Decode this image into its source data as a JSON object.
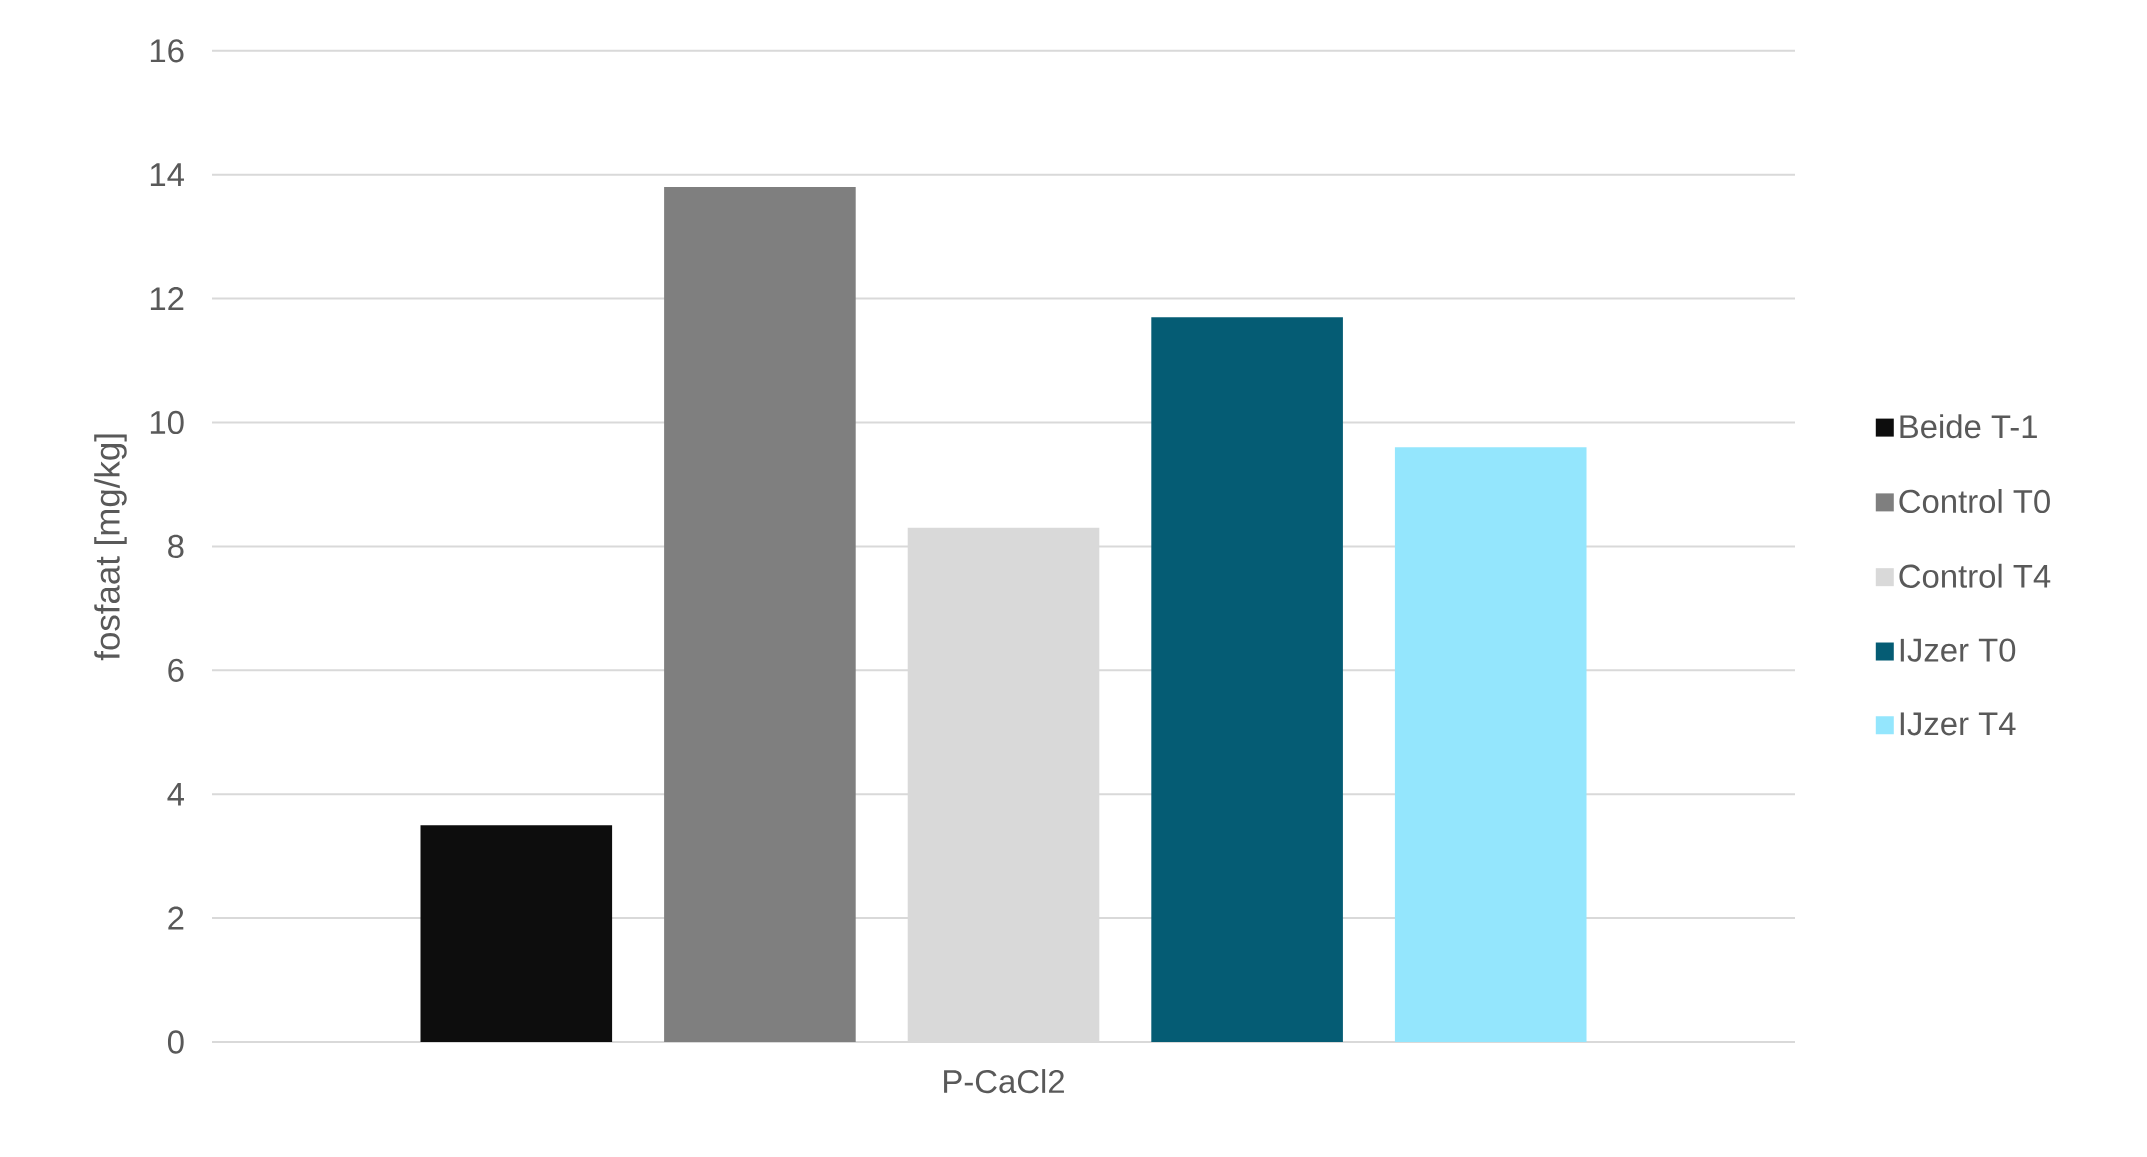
{
  "chart_data": {
    "type": "bar",
    "ylabel": "fosfaat [mg/kg]",
    "categories": [
      "P-CaCl2"
    ],
    "series": [
      {
        "name": "Beide T-1",
        "color": "#0d0d0d",
        "values": [
          3.5
        ]
      },
      {
        "name": "Control T0",
        "color": "#7f7f7f",
        "values": [
          13.8
        ]
      },
      {
        "name": "Control T4",
        "color": "#d9d9d9",
        "values": [
          8.3
        ]
      },
      {
        "name": "IJzer T0",
        "color": "#055c74",
        "values": [
          11.7
        ]
      },
      {
        "name": "IJzer T4",
        "color": "#94e6fd",
        "values": [
          9.6
        ]
      }
    ],
    "ylim": [
      0,
      16
    ],
    "yticks": [
      0,
      2,
      4,
      6,
      8,
      10,
      12,
      14,
      16
    ],
    "grid": "y",
    "legend": "right"
  }
}
